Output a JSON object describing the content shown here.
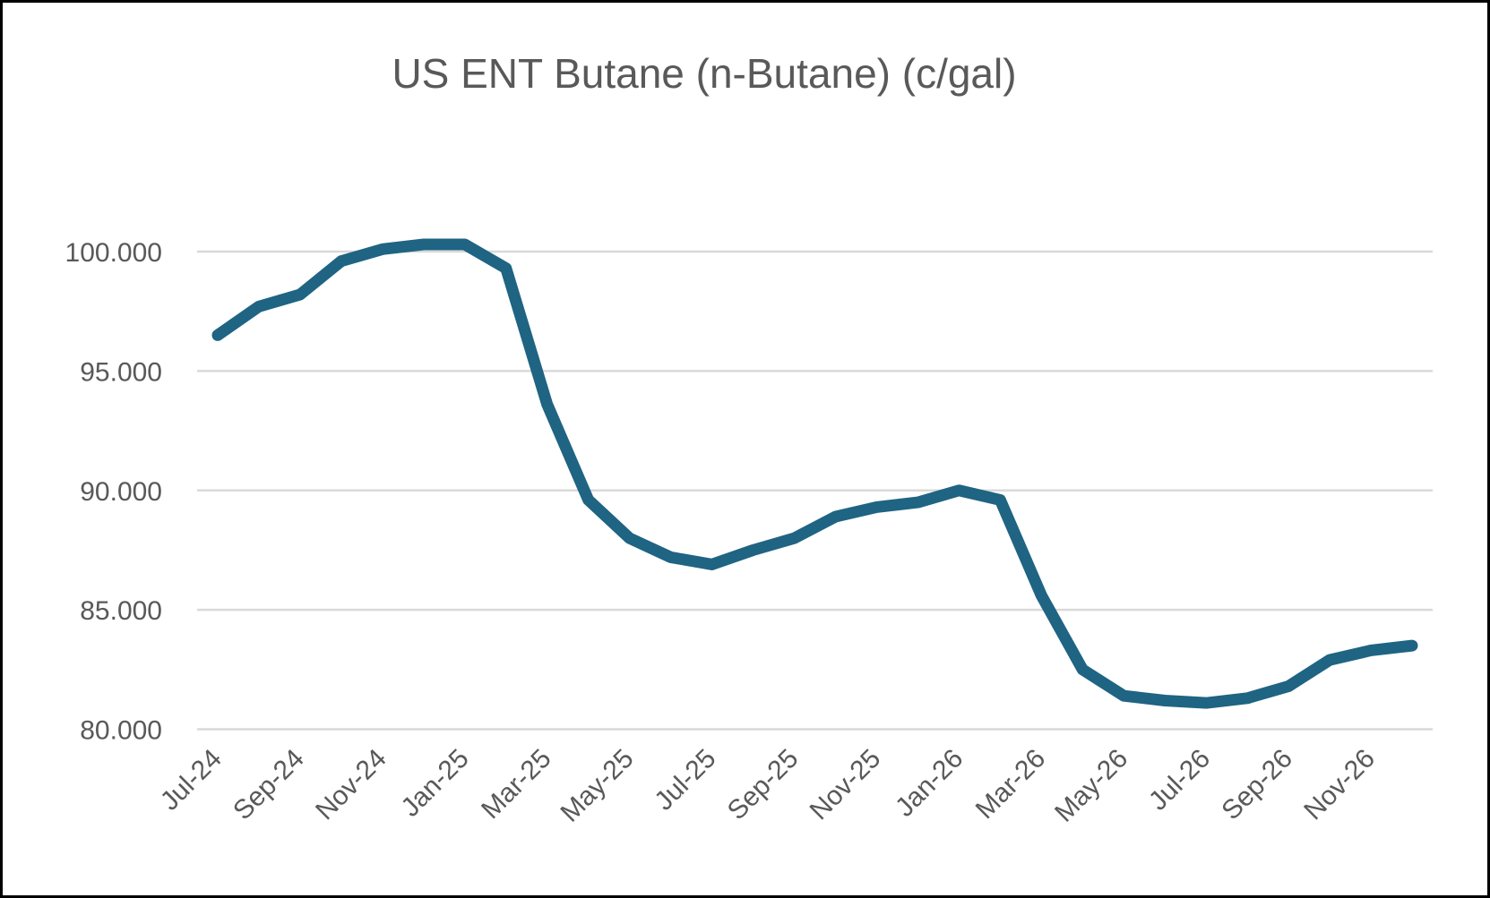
{
  "chart": {
    "colors": {
      "line": "#1f6482",
      "grid": "#d9d9d9",
      "text": "#595959",
      "background": "#ffffff",
      "border": "#000000"
    }
  },
  "chart_data": {
    "type": "line",
    "title": "US ENT Butane (n-Butane) (c/gal)",
    "xlabel": "",
    "ylabel": "",
    "grid": "horizontal",
    "legend": "none",
    "ylim": [
      80,
      100
    ],
    "y_ticks": [
      80,
      85,
      90,
      95,
      100
    ],
    "y_tick_labels": [
      "80.000",
      "85.000",
      "90.000",
      "95.000",
      "100.000"
    ],
    "x_tick_labels": [
      "Jul-24",
      "Sep-24",
      "Nov-24",
      "Jan-25",
      "Mar-25",
      "May-25",
      "Jul-25",
      "Sep-25",
      "Nov-25",
      "Jan-26",
      "Mar-26",
      "May-26",
      "Jul-26",
      "Sep-26",
      "Nov-26"
    ],
    "x_tick_every": 2,
    "x_tick_rotation": -45,
    "x": [
      "Jul-24",
      "Aug-24",
      "Sep-24",
      "Oct-24",
      "Nov-24",
      "Dec-24",
      "Jan-25",
      "Feb-25",
      "Mar-25",
      "Apr-25",
      "May-25",
      "Jun-25",
      "Jul-25",
      "Aug-25",
      "Sep-25",
      "Oct-25",
      "Nov-25",
      "Dec-25",
      "Jan-26",
      "Feb-26",
      "Mar-26",
      "Apr-26",
      "May-26",
      "Jun-26",
      "Jul-26",
      "Aug-26",
      "Sep-26",
      "Oct-26",
      "Nov-26",
      "Dec-26"
    ],
    "values": [
      96.5,
      97.7,
      98.2,
      99.6,
      100.1,
      100.3,
      100.3,
      99.3,
      93.6,
      89.6,
      88.0,
      87.2,
      86.9,
      87.5,
      88.0,
      88.9,
      89.3,
      89.5,
      90.0,
      89.6,
      85.6,
      82.5,
      81.4,
      81.2,
      81.1,
      81.3,
      81.8,
      82.9,
      83.3,
      83.5
    ]
  }
}
